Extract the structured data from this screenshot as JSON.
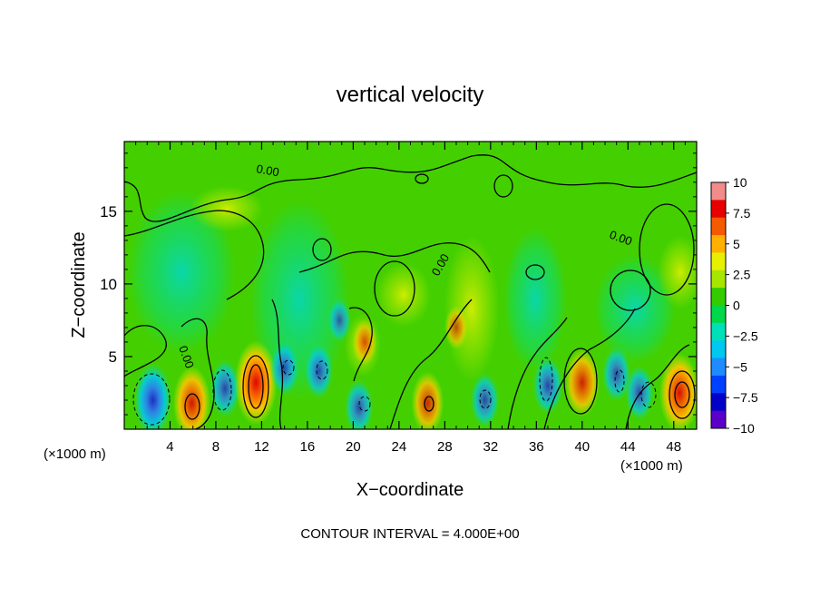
{
  "chart_data": {
    "type": "heatmap",
    "title": "vertical velocity",
    "xlabel": "X−coordinate",
    "ylabel": "Z−coordinate",
    "x_unit_left": "(×1000 m)",
    "x_unit_right": "(×1000 m)",
    "footer": "CONTOUR INTERVAL = 4.000E+00",
    "xlim": [
      0,
      50
    ],
    "ylim": [
      0,
      19.8
    ],
    "x_ticks": [
      4,
      8,
      12,
      16,
      20,
      24,
      28,
      32,
      36,
      40,
      44,
      48
    ],
    "y_ticks": [
      5,
      10,
      15
    ],
    "contour_labels": [
      "0.00",
      "0.00",
      "0.00",
      "0.00"
    ],
    "colorbar": {
      "min": -10,
      "max": 10,
      "tick_values": [
        10,
        7.5,
        5,
        2.5,
        0,
        -2.5,
        -5,
        -7.5,
        -10
      ],
      "tick_labels": [
        "10",
        "7.5",
        "5",
        "2.5",
        "0",
        "−2.5",
        "−5",
        "−7.5",
        "−10"
      ],
      "colors": [
        "#f38b8b",
        "#e60000",
        "#f55a00",
        "#ffb000",
        "#e6f000",
        "#a6e600",
        "#33cc00",
        "#00d84a",
        "#00e0b8",
        "#00c8f0",
        "#1e8cff",
        "#0040ff",
        "#0000c8",
        "#5a00c8"
      ]
    },
    "features": [
      {
        "x": 2.5,
        "z": 2.0,
        "value": -7.5
      },
      {
        "x": 5.9,
        "z": 1.8,
        "value": 7.5
      },
      {
        "x": 8.8,
        "z": 2.8,
        "value": -4.5
      },
      {
        "x": 11.5,
        "z": 3.2,
        "value": 9.5
      },
      {
        "x": 14.0,
        "z": 4.2,
        "value": -4.0
      },
      {
        "x": 17.0,
        "z": 4.0,
        "value": -4.0
      },
      {
        "x": 18.8,
        "z": 7.5,
        "value": -2.0
      },
      {
        "x": 20.5,
        "z": 1.5,
        "value": -4.0
      },
      {
        "x": 21.0,
        "z": 6.0,
        "value": 2.5
      },
      {
        "x": 26.5,
        "z": 1.8,
        "value": 5.5
      },
      {
        "x": 29.0,
        "z": 7.0,
        "value": 2.0
      },
      {
        "x": 31.5,
        "z": 2.0,
        "value": -4.0
      },
      {
        "x": 37.0,
        "z": 3.0,
        "value": -4.5
      },
      {
        "x": 40.0,
        "z": 3.2,
        "value": 6.5
      },
      {
        "x": 43.0,
        "z": 3.8,
        "value": -4.0
      },
      {
        "x": 45.0,
        "z": 2.5,
        "value": -4.0
      },
      {
        "x": 48.5,
        "z": 2.5,
        "value": 8.5
      }
    ]
  }
}
